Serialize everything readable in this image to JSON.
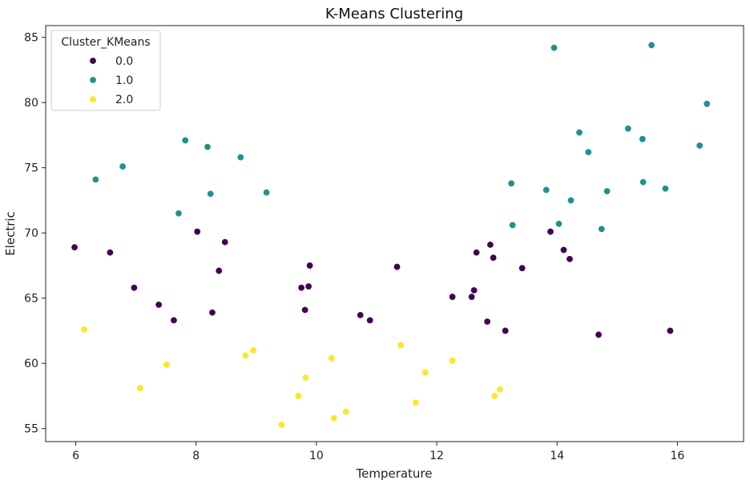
{
  "chart_data": {
    "type": "scatter",
    "title": "K-Means Clustering",
    "xlabel": "Temperature",
    "ylabel": "Electric",
    "xlim": [
      5.5,
      17.1
    ],
    "ylim": [
      54.0,
      85.9
    ],
    "xticks": [
      6,
      8,
      10,
      12,
      14,
      16
    ],
    "yticks": [
      55,
      60,
      65,
      70,
      75,
      80,
      85
    ],
    "grid": false,
    "legend": {
      "title": "Cluster_KMeans",
      "placement": "top-left"
    },
    "series": [
      {
        "name": "0.0",
        "color": "#440154",
        "points": [
          [
            5.98,
            68.9
          ],
          [
            6.57,
            68.5
          ],
          [
            6.97,
            65.8
          ],
          [
            7.38,
            64.5
          ],
          [
            7.63,
            63.3
          ],
          [
            8.02,
            70.1
          ],
          [
            8.27,
            63.9
          ],
          [
            8.38,
            67.1
          ],
          [
            8.48,
            69.3
          ],
          [
            9.75,
            65.8
          ],
          [
            9.81,
            64.1
          ],
          [
            9.87,
            65.9
          ],
          [
            9.89,
            67.5
          ],
          [
            10.73,
            63.7
          ],
          [
            10.89,
            63.3
          ],
          [
            11.34,
            67.4
          ],
          [
            12.26,
            65.1
          ],
          [
            12.58,
            65.1
          ],
          [
            12.62,
            65.6
          ],
          [
            12.66,
            68.5
          ],
          [
            12.84,
            63.2
          ],
          [
            12.89,
            69.1
          ],
          [
            12.94,
            68.1
          ],
          [
            13.14,
            62.5
          ],
          [
            13.42,
            67.3
          ],
          [
            13.89,
            70.1
          ],
          [
            14.11,
            68.7
          ],
          [
            14.21,
            68.0
          ],
          [
            14.69,
            62.2
          ],
          [
            15.88,
            62.5
          ]
        ]
      },
      {
        "name": "1.0",
        "color": "#21918c",
        "points": [
          [
            6.33,
            74.1
          ],
          [
            6.78,
            75.1
          ],
          [
            7.71,
            71.5
          ],
          [
            7.82,
            77.1
          ],
          [
            8.19,
            76.6
          ],
          [
            8.24,
            73.0
          ],
          [
            8.74,
            75.8
          ],
          [
            9.17,
            73.1
          ],
          [
            13.24,
            73.8
          ],
          [
            13.26,
            70.6
          ],
          [
            13.82,
            73.3
          ],
          [
            13.95,
            84.2
          ],
          [
            14.03,
            70.7
          ],
          [
            14.23,
            72.5
          ],
          [
            14.37,
            77.7
          ],
          [
            14.52,
            76.2
          ],
          [
            14.74,
            70.3
          ],
          [
            14.83,
            73.2
          ],
          [
            15.18,
            78.0
          ],
          [
            15.42,
            77.2
          ],
          [
            15.43,
            73.9
          ],
          [
            15.57,
            84.4
          ],
          [
            15.8,
            73.4
          ],
          [
            16.37,
            76.7
          ],
          [
            16.49,
            79.9
          ]
        ]
      },
      {
        "name": "2.0",
        "color": "#fde725",
        "points": [
          [
            6.14,
            62.6
          ],
          [
            7.07,
            58.1
          ],
          [
            7.51,
            59.9
          ],
          [
            8.82,
            60.6
          ],
          [
            8.95,
            61.0
          ],
          [
            9.42,
            55.3
          ],
          [
            9.7,
            57.5
          ],
          [
            9.82,
            58.9
          ],
          [
            10.25,
            60.4
          ],
          [
            10.29,
            55.8
          ],
          [
            10.49,
            56.3
          ],
          [
            11.4,
            61.4
          ],
          [
            11.65,
            57.0
          ],
          [
            11.81,
            59.3
          ],
          [
            12.26,
            60.2
          ],
          [
            12.96,
            57.5
          ],
          [
            13.05,
            58.0
          ]
        ]
      }
    ]
  }
}
